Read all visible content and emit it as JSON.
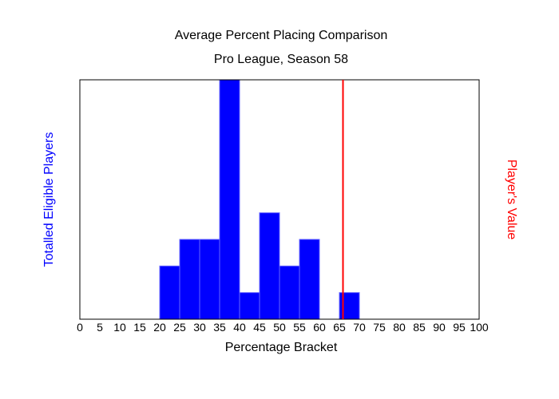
{
  "chart_data": {
    "type": "bar",
    "title": "Average Percent Placing Comparison",
    "subtitle": "Pro League, Season 58",
    "xlabel": "Percentage Bracket",
    "ylabel": "Totalled Eligible Players",
    "y2label": "Player's Value",
    "xlim": [
      0,
      100
    ],
    "ylim": [
      0,
      9
    ],
    "xticks": [
      "0",
      "5",
      "10",
      "15",
      "20",
      "25",
      "30",
      "35",
      "40",
      "45",
      "50",
      "55",
      "60",
      "65",
      "70",
      "75",
      "80",
      "85",
      "90",
      "95",
      "100"
    ],
    "bins": [
      20,
      25,
      30,
      35,
      40,
      45,
      50,
      55,
      60,
      65
    ],
    "bin_width": 5,
    "values": [
      2,
      3,
      3,
      9,
      1,
      4,
      2,
      3,
      0,
      1
    ],
    "player_value": 65.9,
    "grid": false,
    "colors": {
      "bars": "#0000ff",
      "bar_edge": "#6666ff",
      "player_line": "#ff0000",
      "ylabel": "#0000ff",
      "y2label": "#ff0000"
    }
  }
}
